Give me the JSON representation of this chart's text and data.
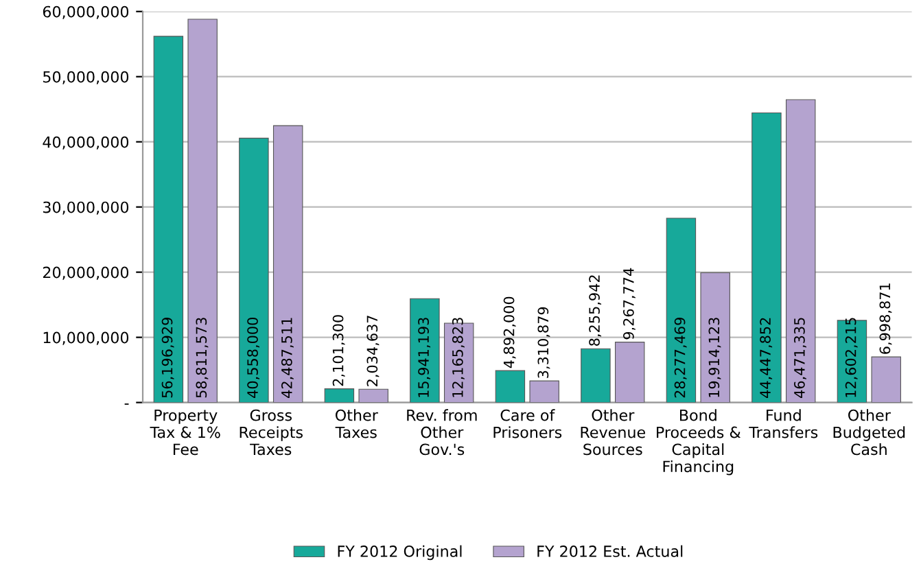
{
  "chart_data": {
    "type": "bar",
    "categories": [
      "Property\nTax & 1%\nFee",
      "Gross\nReceipts\nTaxes",
      "Other\nTaxes",
      "Rev. from\nOther\nGov.'s",
      "Care of\nPrisoners",
      "Other\nRevenue\nSources",
      "Bond\nProceeds &\nCapital\nFinancing",
      "Fund\nTransfers",
      "Other\nBudgeted\nCash"
    ],
    "series": [
      {
        "name": "FY 2012 Original",
        "color": "#17a99a",
        "values": [
          56196929,
          40558000,
          2101300,
          15941193,
          4892000,
          8255942,
          28277469,
          44447852,
          12602215
        ],
        "value_labels": [
          "56,196,929",
          "40,558,000",
          "2,101,300",
          "15,941,193",
          "4,892,000",
          "8,255,942",
          "28,277,469",
          "44,447,852",
          "12,602,215"
        ]
      },
      {
        "name": "FY 2012 Est. Actual",
        "color": "#b4a3cf",
        "values": [
          58811573,
          42487511,
          2034637,
          12165823,
          3310879,
          9267774,
          19914123,
          46471335,
          6998871
        ],
        "value_labels": [
          "58,811,573",
          "42,487,511",
          "2,034,637",
          "12,165,823",
          "3,310,879",
          "9,267,774",
          "19,914,123",
          "46,471,335",
          "6,998,871"
        ]
      }
    ],
    "ylim": [
      0,
      60000000
    ],
    "yticks": [
      {
        "value": 0,
        "label": "-"
      },
      {
        "value": 10000000,
        "label": "10,000,000"
      },
      {
        "value": 20000000,
        "label": "20,000,000"
      },
      {
        "value": 30000000,
        "label": "30,000,000"
      },
      {
        "value": 40000000,
        "label": "40,000,000"
      },
      {
        "value": 50000000,
        "label": "50,000,000"
      },
      {
        "value": 60000000,
        "label": "60,000,000"
      }
    ],
    "grid": "y",
    "legend": "bottom"
  }
}
